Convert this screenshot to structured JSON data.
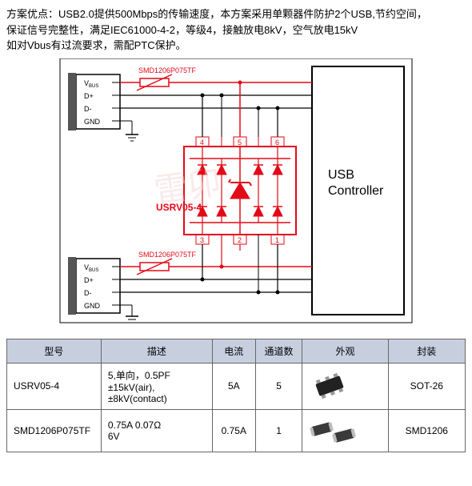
{
  "description": {
    "line1": "方案优点：USB2.0提供500Mbps的传输速度，本方案采用单颗器件防护2个USB,节约空间，",
    "line2": "保证信号完整性，满足IEC61000-4-2，等级4，接触放电8kV，空气放电15kV",
    "line3": "如对Vbus有过流要求，需配PTC保护。"
  },
  "diagram": {
    "usb_port": {
      "labels": [
        "V",
        "D+",
        "D-",
        "GND"
      ],
      "label_sub": "BUS"
    },
    "ptc_label": "SMD1206P075TF",
    "chip_label": "USRV05-4",
    "controller_label1": "USB",
    "controller_label2": "Controller",
    "pin_numbers_top": [
      "4",
      "5",
      "6"
    ],
    "pin_numbers_bottom": [
      "3",
      "2",
      "1"
    ],
    "colors": {
      "red": "#e20a17",
      "black": "#000000",
      "gray": "#ddd",
      "bg": "#ffffff"
    }
  },
  "table": {
    "headers": [
      "型号",
      "描述",
      "电流",
      "通道数",
      "外观",
      "封装"
    ],
    "header_bg": "#c7cfdf",
    "rows": [
      {
        "model": "USRV05-4",
        "desc": "5,单向，0.5PF\n±15kV(air),\n±8kV(contact)",
        "current": "5A",
        "channels": "5",
        "package": "SOT-26",
        "img_type": "sot26"
      },
      {
        "model": "SMD1206P075TF",
        "desc": "0.75A  0.07Ω\n6V",
        "current": "0.75A",
        "channels": "1",
        "package": "SMD1206",
        "img_type": "smd1206"
      }
    ],
    "col_widths": [
      "110",
      "130",
      "50",
      "55",
      "100",
      "90"
    ]
  }
}
